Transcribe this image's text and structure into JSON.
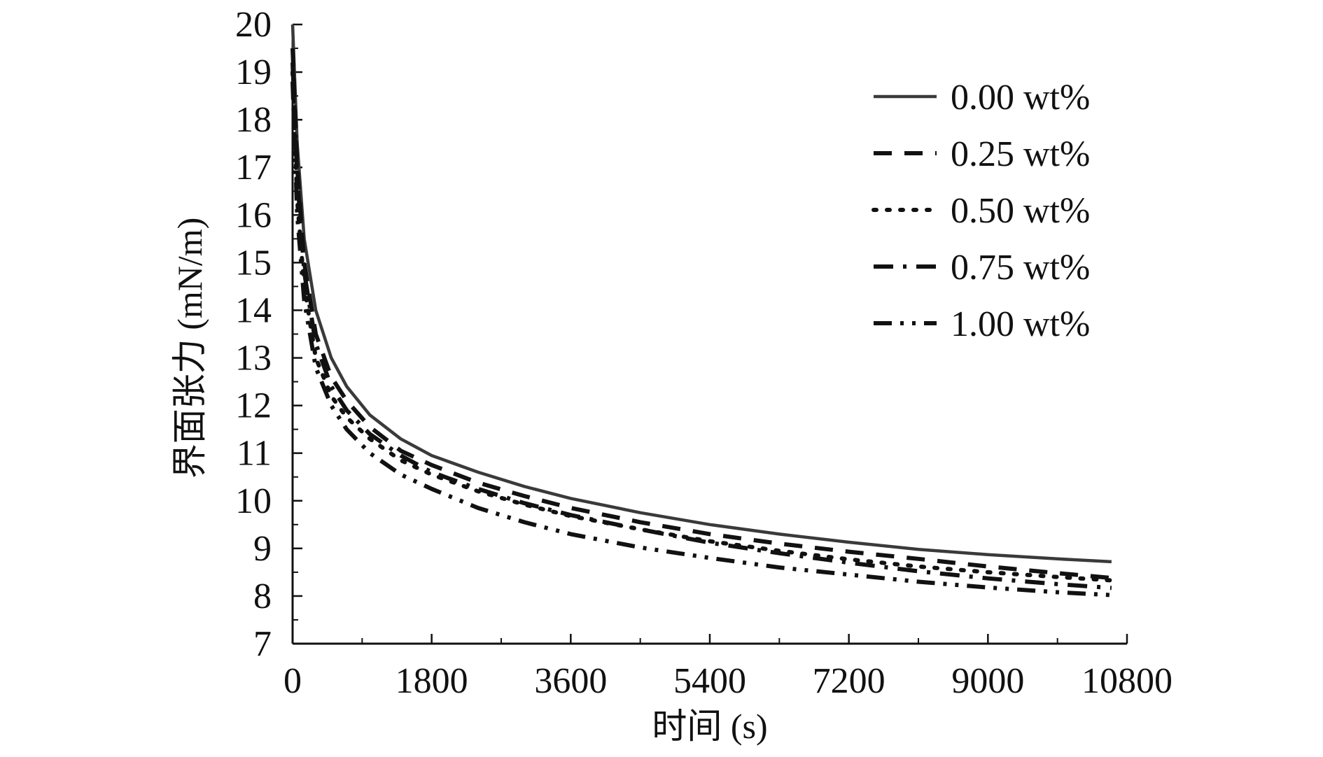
{
  "chart_data": {
    "type": "line",
    "title": "",
    "xlabel": "时间 (s)",
    "ylabel": "界面张力 (mN/m)",
    "xlim": [
      0,
      10800
    ],
    "ylim": [
      7,
      20
    ],
    "xticks": [
      0,
      1800,
      3600,
      5400,
      7200,
      9000,
      10800
    ],
    "yticks": [
      7,
      8,
      9,
      10,
      11,
      12,
      13,
      14,
      15,
      16,
      17,
      18,
      19,
      20
    ],
    "grid": false,
    "legend_position": "top-right",
    "series": [
      {
        "name": "0.00 wt%",
        "dash": "solid",
        "color": "#3a3a3a",
        "points": [
          [
            0,
            20.0
          ],
          [
            60,
            17.5
          ],
          [
            150,
            15.5
          ],
          [
            300,
            14.0
          ],
          [
            500,
            13.0
          ],
          [
            700,
            12.4
          ],
          [
            1000,
            11.8
          ],
          [
            1400,
            11.3
          ],
          [
            1800,
            10.95
          ],
          [
            2400,
            10.6
          ],
          [
            3000,
            10.3
          ],
          [
            3600,
            10.05
          ],
          [
            4500,
            9.75
          ],
          [
            5400,
            9.5
          ],
          [
            6300,
            9.3
          ],
          [
            7200,
            9.13
          ],
          [
            8100,
            8.98
          ],
          [
            9000,
            8.87
          ],
          [
            9900,
            8.78
          ],
          [
            10600,
            8.72
          ]
        ]
      },
      {
        "name": "0.25 wt%",
        "dash": "dashed",
        "color": "#111111",
        "points": [
          [
            0,
            19.5
          ],
          [
            60,
            17.0
          ],
          [
            150,
            15.0
          ],
          [
            300,
            13.5
          ],
          [
            500,
            12.6
          ],
          [
            700,
            12.1
          ],
          [
            1000,
            11.55
          ],
          [
            1400,
            11.05
          ],
          [
            1800,
            10.75
          ],
          [
            2400,
            10.38
          ],
          [
            3000,
            10.1
          ],
          [
            3600,
            9.85
          ],
          [
            4500,
            9.55
          ],
          [
            5400,
            9.3
          ],
          [
            6300,
            9.1
          ],
          [
            7200,
            8.93
          ],
          [
            8100,
            8.78
          ],
          [
            9000,
            8.62
          ],
          [
            9900,
            8.48
          ],
          [
            10600,
            8.38
          ]
        ]
      },
      {
        "name": "0.50 wt%",
        "dash": "dotted",
        "color": "#111111",
        "points": [
          [
            0,
            19.0
          ],
          [
            60,
            16.3
          ],
          [
            150,
            14.5
          ],
          [
            300,
            13.0
          ],
          [
            500,
            12.2
          ],
          [
            700,
            11.75
          ],
          [
            1000,
            11.3
          ],
          [
            1400,
            10.85
          ],
          [
            1800,
            10.55
          ],
          [
            2400,
            10.2
          ],
          [
            3000,
            9.92
          ],
          [
            3600,
            9.68
          ],
          [
            4500,
            9.4
          ],
          [
            5400,
            9.15
          ],
          [
            6300,
            8.95
          ],
          [
            7200,
            8.77
          ],
          [
            8100,
            8.62
          ],
          [
            9000,
            8.5
          ],
          [
            9900,
            8.4
          ],
          [
            10600,
            8.33
          ]
        ]
      },
      {
        "name": "0.75 wt%",
        "dash": "dashdot",
        "color": "#111111",
        "points": [
          [
            0,
            19.2
          ],
          [
            60,
            16.8
          ],
          [
            150,
            14.8
          ],
          [
            300,
            13.3
          ],
          [
            500,
            12.4
          ],
          [
            700,
            11.9
          ],
          [
            1000,
            11.4
          ],
          [
            1400,
            10.95
          ],
          [
            1800,
            10.6
          ],
          [
            2400,
            10.25
          ],
          [
            3000,
            9.95
          ],
          [
            3600,
            9.7
          ],
          [
            4500,
            9.4
          ],
          [
            5400,
            9.12
          ],
          [
            6300,
            8.9
          ],
          [
            7200,
            8.7
          ],
          [
            8100,
            8.52
          ],
          [
            9000,
            8.37
          ],
          [
            9900,
            8.25
          ],
          [
            10600,
            8.17
          ]
        ]
      },
      {
        "name": "1.00 wt%",
        "dash": "dashdotdot",
        "color": "#111111",
        "points": [
          [
            0,
            18.8
          ],
          [
            60,
            16.0
          ],
          [
            150,
            14.2
          ],
          [
            300,
            12.8
          ],
          [
            500,
            12.0
          ],
          [
            700,
            11.5
          ],
          [
            1000,
            11.0
          ],
          [
            1400,
            10.55
          ],
          [
            1800,
            10.25
          ],
          [
            2400,
            9.85
          ],
          [
            3000,
            9.55
          ],
          [
            3600,
            9.3
          ],
          [
            4500,
            9.02
          ],
          [
            5400,
            8.8
          ],
          [
            6300,
            8.6
          ],
          [
            7200,
            8.45
          ],
          [
            8100,
            8.3
          ],
          [
            9000,
            8.18
          ],
          [
            9900,
            8.08
          ],
          [
            10600,
            8.02
          ]
        ]
      }
    ]
  }
}
